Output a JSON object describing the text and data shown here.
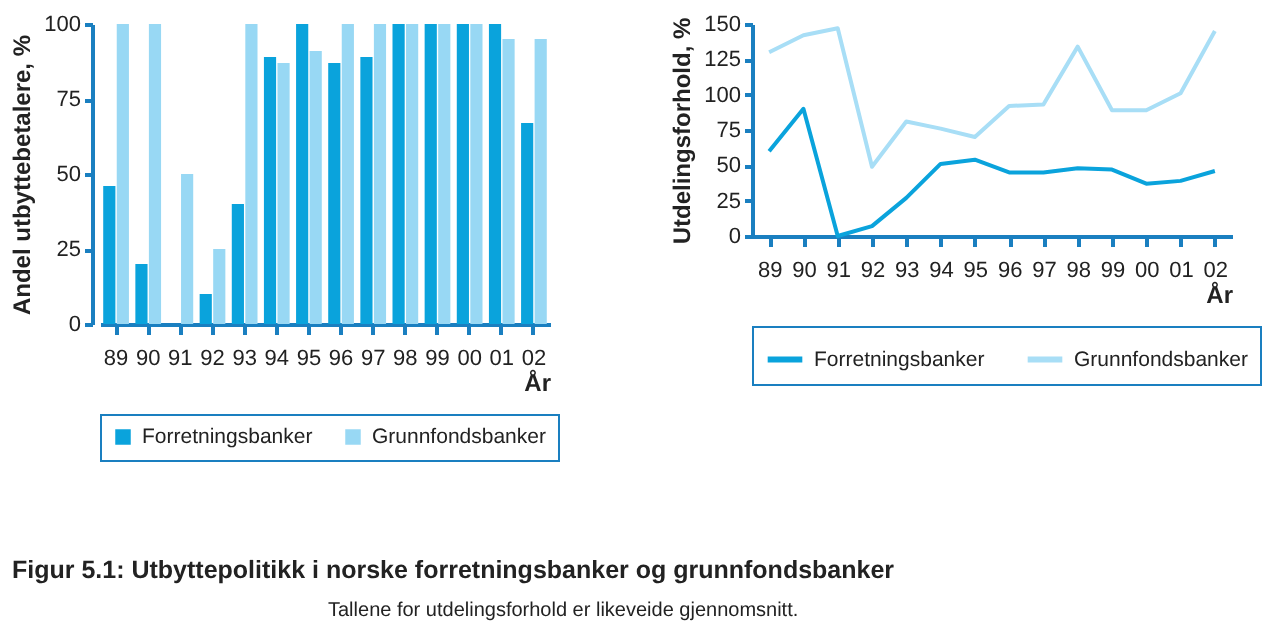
{
  "chart_data": [
    {
      "type": "bar",
      "title": "Figur 5.1: Utbyttepolitikk i norske forretningsbanker og grunnfondsbanker",
      "subtitle": "Tallene for utdelingsforhold er likeveide gjennomsnitt.",
      "xlabel": "År",
      "ylabel": "Andel utbyttebetalere, %",
      "categories": [
        "89",
        "90",
        "91",
        "92",
        "93",
        "94",
        "95",
        "96",
        "97",
        "98",
        "99",
        "00",
        "01",
        "02"
      ],
      "series": [
        {
          "name": "Forretningsbanker",
          "color": "#0aa3dc",
          "values": [
            46,
            20,
            0,
            10,
            40,
            89,
            100,
            87,
            89,
            100,
            100,
            100,
            100,
            67
          ]
        },
        {
          "name": "Grunnfondsbanker",
          "color": "#98d8f4",
          "values": [
            100,
            100,
            50,
            25,
            100,
            87,
            91,
            100,
            100,
            100,
            100,
            100,
            95,
            95
          ]
        }
      ],
      "ylim": [
        0,
        100
      ],
      "yticks": [
        0,
        25,
        50,
        75,
        100
      ],
      "grid": false,
      "legend": "bottom"
    },
    {
      "type": "line",
      "xlabel": "År",
      "ylabel": "Utdelingsforhold, %",
      "categories": [
        "89",
        "90",
        "91",
        "92",
        "93",
        "94",
        "95",
        "96",
        "97",
        "98",
        "99",
        "00",
        "01",
        "02"
      ],
      "series": [
        {
          "name": "Forretningsbanker",
          "color": "#0aa3dc",
          "values": [
            60,
            90,
            0,
            7,
            27,
            51,
            54,
            45,
            45,
            48,
            47,
            37,
            39,
            46
          ]
        },
        {
          "name": "Grunnfondsbanker",
          "color": "#a8def6",
          "values": [
            130,
            142,
            147,
            49,
            81,
            76,
            70,
            92,
            93,
            134,
            89,
            89,
            101,
            145
          ]
        }
      ],
      "ylim": [
        0,
        150
      ],
      "yticks": [
        0,
        25,
        50,
        75,
        100,
        125,
        150
      ],
      "grid": false,
      "legend": "bottom"
    }
  ]
}
